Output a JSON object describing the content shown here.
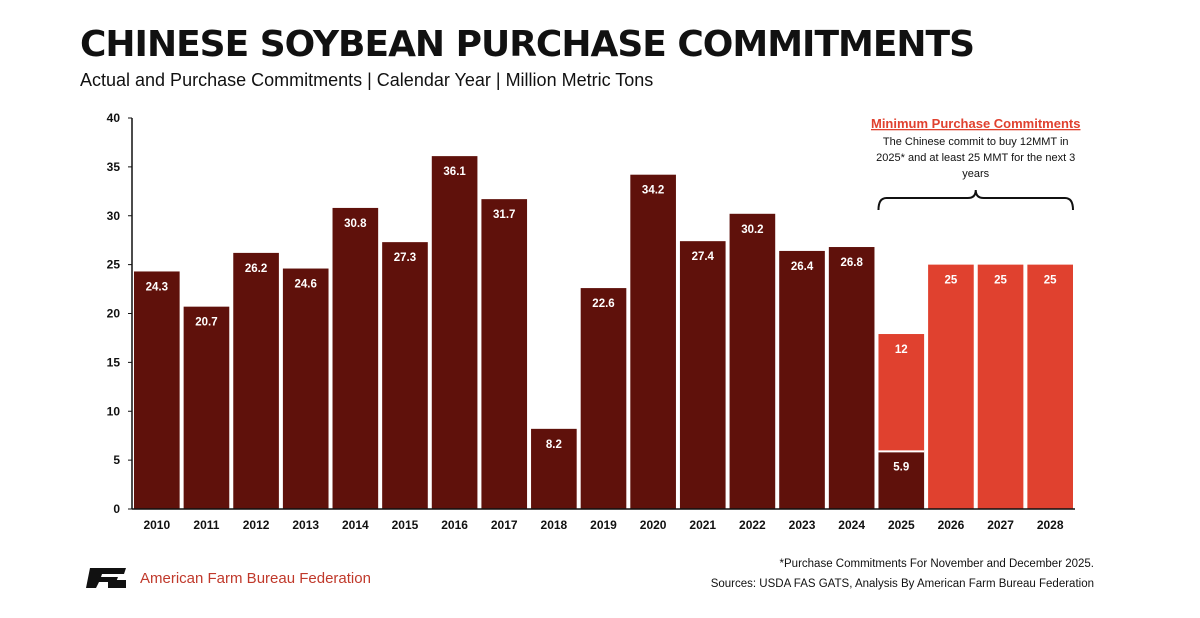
{
  "chart_data": {
    "type": "bar",
    "title": "CHINESE SOYBEAN PURCHASE COMMITMENTS",
    "subtitle": "Actual and Purchase Commitments | Calendar Year | Million Metric Tons",
    "categories": [
      "2010",
      "2011",
      "2012",
      "2013",
      "2014",
      "2015",
      "2016",
      "2017",
      "2018",
      "2019",
      "2020",
      "2021",
      "2022",
      "2023",
      "2024",
      "2025",
      "2026",
      "2027",
      "2028"
    ],
    "series": [
      {
        "name": "",
        "color": "#5f110b",
        "values": [
          24.3,
          20.7,
          26.2,
          24.6,
          30.8,
          27.3,
          36.1,
          31.7,
          8.2,
          22.6,
          34.2,
          27.4,
          30.2,
          26.4,
          26.8,
          5.9,
          null,
          null,
          null
        ],
        "labels": [
          "24.3",
          "20.7",
          "26.2",
          "24.6",
          "30.8",
          "27.3",
          "36.1",
          "31.7",
          "8.2",
          "22.6",
          "34.2",
          "27.4",
          "30.2",
          "26.4",
          "26.8",
          "5.9",
          "",
          "",
          ""
        ]
      },
      {
        "name": "",
        "color": "#e0412f",
        "values": [
          null,
          null,
          null,
          null,
          null,
          null,
          null,
          null,
          null,
          null,
          null,
          null,
          null,
          null,
          null,
          12,
          25,
          25,
          25
        ],
        "labels": [
          "",
          "",
          "",
          "",
          "",
          "",
          "",
          "",
          "",
          "",
          "",
          "",
          "",
          "",
          "",
          "12",
          "25",
          "25",
          "25"
        ]
      }
    ],
    "stacked": true,
    "ylim": [
      0,
      40
    ],
    "yticks": [
      0,
      5,
      10,
      15,
      20,
      25,
      30,
      35,
      40
    ],
    "xlabel": "",
    "ylabel": "",
    "grid": false,
    "annotation": {
      "title": "Minimum Purchase Commitments",
      "lines": [
        "The Chinese commit to buy 12MMT in",
        "2025* and at least 25 MMT for the next 3",
        "years"
      ],
      "bracket_from": "2025",
      "bracket_to": "2028"
    }
  },
  "footer": {
    "logo_mark": "FB",
    "org": "American Farm Bureau Federation",
    "footnote": "*Purchase Commitments For November and December 2025.",
    "sources": "Sources: USDA FAS GATS, Analysis By American Farm Bureau Federation"
  }
}
